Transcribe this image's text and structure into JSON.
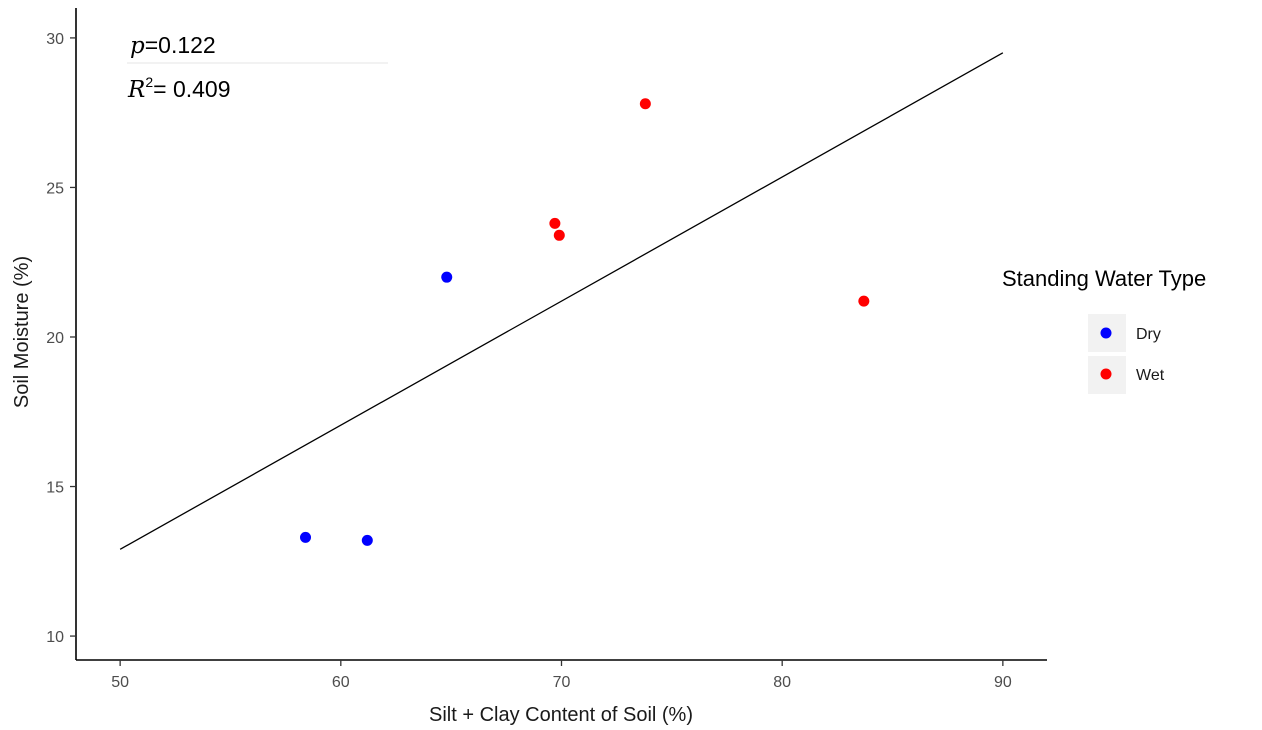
{
  "chart_data": {
    "type": "scatter",
    "title": "",
    "xlabel": "Silt + Clay Content of Soil (%)",
    "ylabel": "Soil Moisture (%)",
    "xlim": [
      48,
      92
    ],
    "ylim": [
      9.2,
      31
    ],
    "xticks": [
      50,
      60,
      70,
      80,
      90
    ],
    "yticks": [
      10,
      15,
      20,
      25,
      30
    ],
    "grid": false,
    "legend": {
      "title": "Standing Water Type",
      "position": "right"
    },
    "annotations": {
      "p_symbol": "p",
      "p_value": "=0.122",
      "r2_symbol": "R",
      "r2_exp": "2",
      "r2_value": "= 0.409"
    },
    "series": [
      {
        "name": "Dry",
        "color": "#0000ff",
        "points": [
          {
            "x": 58.4,
            "y": 13.3
          },
          {
            "x": 61.2,
            "y": 13.2
          },
          {
            "x": 64.8,
            "y": 22.0
          }
        ]
      },
      {
        "name": "Wet",
        "color": "#ff0000",
        "points": [
          {
            "x": 69.7,
            "y": 23.8
          },
          {
            "x": 69.9,
            "y": 23.4
          },
          {
            "x": 73.8,
            "y": 27.8
          },
          {
            "x": 83.7,
            "y": 21.2
          }
        ]
      }
    ],
    "fit_line": {
      "color": "#000000",
      "points": [
        {
          "x": 50,
          "y": 12.9
        },
        {
          "x": 90,
          "y": 29.5
        }
      ]
    }
  }
}
